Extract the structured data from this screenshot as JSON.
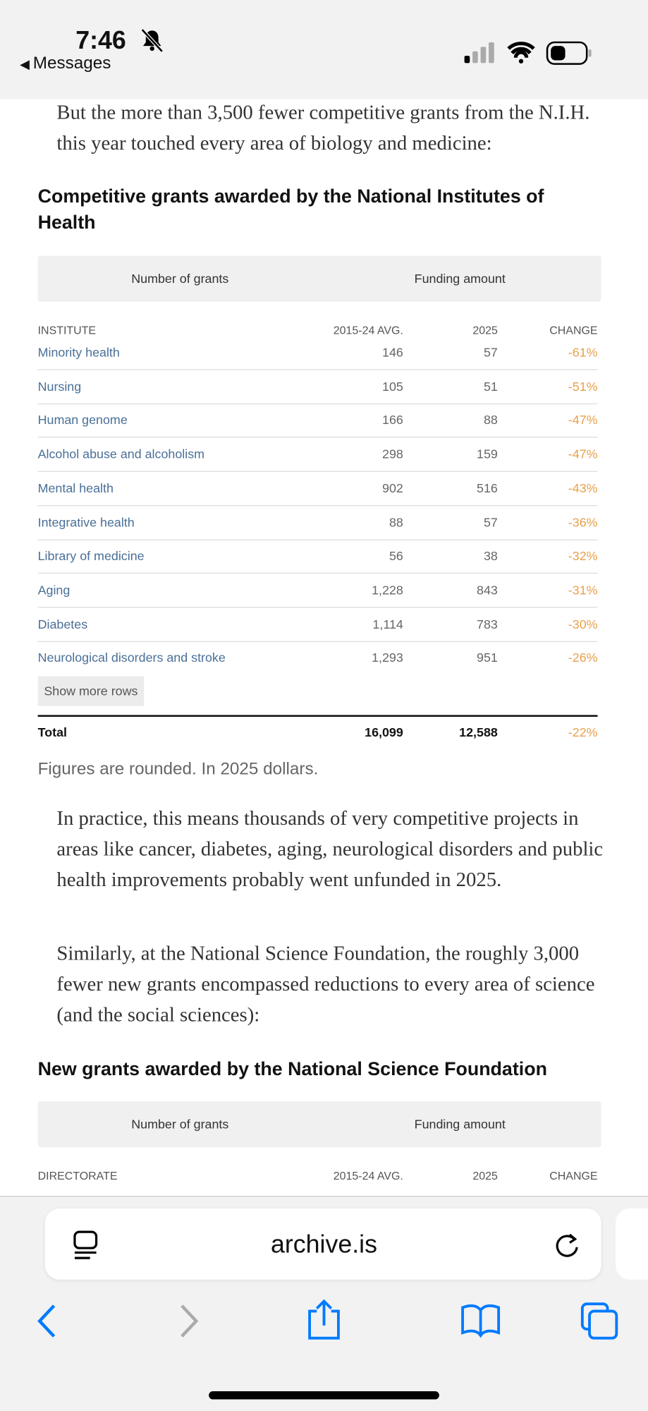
{
  "status_bar": {
    "time": "7:46",
    "back": "Messages"
  },
  "article": {
    "paragraphs": [
      "But the more than 3,500 fewer competitive grants from the N.I.H. this year touched every area of biology and medicine:",
      "In practice, this means thousands of very competitive projects in areas like cancer, diabetes, aging, neurological disorders and public health improvements probably went unfunded in 2025.",
      "Similarly, at the National Science Foundation, the roughly 3,000 fewer new grants encompassed reductions to every area of science (and the social sciences):"
    ]
  },
  "table1": {
    "title": "Competitive grants awarded by the National Institutes of Health",
    "tabs": [
      "Number of grants",
      "Funding amount"
    ],
    "columns": [
      "INSTITUTE",
      "2015-24 AVG.",
      "2025",
      "CHANGE"
    ],
    "rows": [
      [
        "Minority health",
        "146",
        "57",
        "-61%"
      ],
      [
        "Nursing",
        "105",
        "51",
        "-51%"
      ],
      [
        "Human genome",
        "166",
        "88",
        "-47%"
      ],
      [
        "Alcohol abuse and alcoholism",
        "298",
        "159",
        "-47%"
      ],
      [
        "Mental health",
        "902",
        "516",
        "-43%"
      ],
      [
        "Integrative health",
        "88",
        "57",
        "-36%"
      ],
      [
        "Library of medicine",
        "56",
        "38",
        "-32%"
      ],
      [
        "Aging",
        "1,228",
        "843",
        "-31%"
      ],
      [
        "Diabetes",
        "1,114",
        "783",
        "-30%"
      ],
      [
        "Neurological disorders and stroke",
        "1,293",
        "951",
        "-26%"
      ]
    ],
    "button": "Show more rows",
    "total": [
      "Total",
      "16,099",
      "12,588",
      "-22%"
    ],
    "note": "Figures are rounded. In 2025 dollars."
  },
  "table2": {
    "title": "New grants awarded by the National Science Foundation",
    "tabs": [
      "Number of grants",
      "Funding amount"
    ],
    "columns": [
      "DIRECTORATE",
      "2015-24 AVG.",
      "2025",
      "CHANGE"
    ]
  },
  "browser": {
    "url": "archive.is"
  }
}
